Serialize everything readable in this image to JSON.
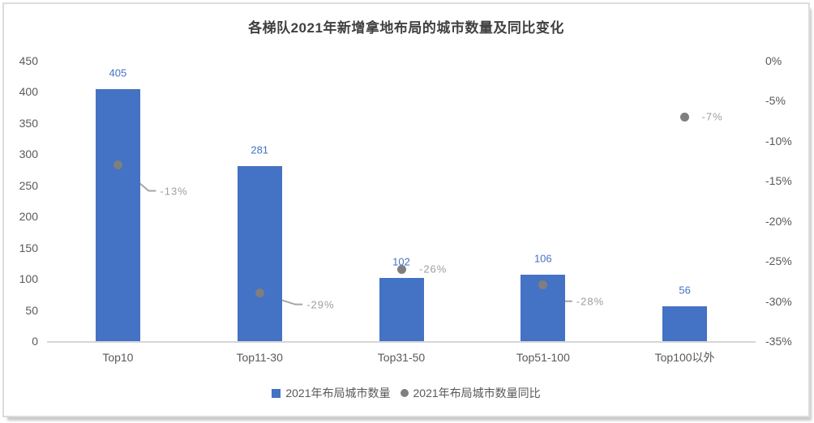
{
  "chart_data": {
    "type": "bar",
    "title": "各梯队2021年新增拿地布局的城市数量及同比变化",
    "categories": [
      "Top10",
      "Top11-30",
      "Top31-50",
      "Top51-100",
      "Top100以外"
    ],
    "series": [
      {
        "name": "2021年布局城市数量",
        "type": "bar",
        "values": [
          405,
          281,
          102,
          106,
          56
        ],
        "color": "#4472C4"
      },
      {
        "name": "2021年布局城市数量同比",
        "type": "scatter",
        "values_pct": [
          -13,
          -29,
          -26,
          -28,
          -7
        ],
        "labels": [
          "-13%",
          "-29%",
          "-26%",
          "-28%",
          "-7%"
        ],
        "color": "#7F7F7F",
        "label_offsets": [
          {
            "dx": 52,
            "dy": 32,
            "leader": true
          },
          {
            "dx": 58,
            "dy": 14,
            "leader": true
          },
          {
            "dx": 22,
            "dy": 0,
            "leader": false
          },
          {
            "dx": 41,
            "dy": 20,
            "leader": true
          },
          {
            "dx": 21,
            "dy": 0,
            "leader": false
          }
        ]
      }
    ],
    "left_axis": {
      "min": 0,
      "max": 450,
      "step": 50,
      "ticks": [
        "0",
        "50",
        "100",
        "150",
        "200",
        "250",
        "300",
        "350",
        "400",
        "450"
      ]
    },
    "right_axis": {
      "min": -35,
      "max": 0,
      "step": -5,
      "ticks": [
        "0%",
        "-5%",
        "-10%",
        "-15%",
        "-20%",
        "-25%",
        "-30%",
        "-35%"
      ]
    },
    "grid": false,
    "legend_position": "bottom",
    "colors": {
      "bar": "#4472C4",
      "bar_value_label": "#4472C4",
      "dot": "#7F7F7F",
      "pct_label": "#9E9E9E",
      "axis_text": "#595959",
      "axis_line": "#D6D6D6",
      "title": "#404040",
      "leader_line": "#A6A6A6"
    }
  },
  "legend": {
    "items": [
      {
        "label": "2021年布局城市数量",
        "marker": "square",
        "color": "#4472C4"
      },
      {
        "label": "2021年布局城市数量同比",
        "marker": "circle",
        "color": "#7F7F7F"
      }
    ]
  }
}
